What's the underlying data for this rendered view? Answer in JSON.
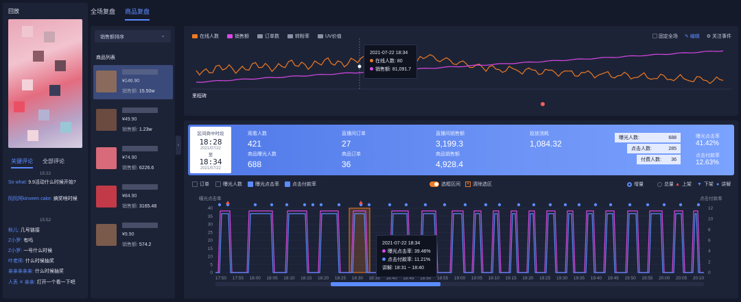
{
  "left": {
    "title": "回放",
    "comment_tabs": [
      "关键评论",
      "全部评论"
    ],
    "comments": [
      {
        "time": "15:22"
      },
      {
        "user": "So what:",
        "text": "9.9活动什么时候开始?"
      },
      {
        "user": "阮阮阿kinveen cake:",
        "text": "搞奖啥时候"
      },
      {
        "time": "15:52"
      },
      {
        "user": "秋儿:",
        "text": "几号链接"
      },
      {
        "user": "Z小罗:",
        "text": "有吗"
      },
      {
        "user": "Z小罗:",
        "text": "一号什么时候"
      },
      {
        "user": "叶老师:",
        "text": "什么时候抽奖"
      },
      {
        "user": "亲亲亲亲亲:",
        "text": "什么时候抽奖"
      },
      {
        "user": "人丢 ✕ 亲亲:",
        "text": "打开一个看一下吧"
      }
    ]
  },
  "tabs": [
    "全场复盘",
    "商品复盘"
  ],
  "middle": {
    "sort_label": "销售额排序",
    "list_title": "商品列表",
    "sales_prefix": "销售额:",
    "items": [
      {
        "price": "¥146.90",
        "sales": "15.50w",
        "thumb": "#8a6a5c"
      },
      {
        "price": "¥49.90",
        "sales": "1.23w",
        "thumb": "#6b4a40"
      },
      {
        "price": "¥74.90",
        "sales": "6226.6",
        "thumb": "#d86a7a"
      },
      {
        "price": "¥84.90",
        "sales": "3165.48",
        "thumb": "#c23a48"
      },
      {
        "price": "¥9.90",
        "sales": "574.2",
        "thumb": "#7a5a4a"
      }
    ]
  },
  "chart1": {
    "legend": [
      {
        "name": "在线人数",
        "color": "#f07a23"
      },
      {
        "name": "销售额",
        "color": "#d948e8"
      },
      {
        "name": "订单数",
        "color": "#8a90a6"
      },
      {
        "name": "转粉率",
        "color": "#8a90a6"
      },
      {
        "name": "UV价值",
        "color": "#8a90a6"
      }
    ],
    "actions": [
      "固定全场",
      "编辑",
      "关注事件"
    ],
    "milestone": "里程碑",
    "tooltip": {
      "time": "2021-07-22 18:34",
      "l1": "在线人数: 80",
      "l2": "销售额: 81,091.7"
    }
  },
  "kpi": {
    "range_title": "区间商中时段",
    "start_time": "18:28",
    "start_date": "2021/07/22",
    "to": "至",
    "end_time": "18:34",
    "end_date": "2021/07/22",
    "cells": [
      {
        "label": "观看人数",
        "value": "421"
      },
      {
        "label": "直播间订单",
        "value": "27"
      },
      {
        "label": "直播间销售额",
        "value": "3,199.3"
      },
      {
        "label": "投放消耗",
        "value": "1,084.32"
      },
      {
        "label": "商品曝光人数",
        "value": "688"
      },
      {
        "label": "商品订单",
        "value": "36"
      },
      {
        "label": "商品销售额",
        "value": "4,928.4"
      }
    ],
    "funnel": [
      {
        "label": "曝光人数:",
        "value": "688"
      },
      {
        "label": "点击人数:",
        "value": "285"
      },
      {
        "label": "付费人数:",
        "value": "36"
      }
    ],
    "rates": [
      {
        "label": "曝光点击率",
        "value": "41.42%"
      },
      {
        "label": "点击付款率",
        "value": "12.63%"
      }
    ]
  },
  "controls": {
    "checks": [
      {
        "label": "订单",
        "on": false
      },
      {
        "label": "曝光人数",
        "on": false
      },
      {
        "label": "曝光点击率",
        "on": true
      },
      {
        "label": "点击付款率",
        "on": true
      }
    ],
    "toggle": "选框区间",
    "clear": "清除选区",
    "modes": [
      "增量",
      "总量"
    ],
    "up": "上架",
    "down": "下架",
    "explain": "讲解"
  },
  "chart_data": {
    "type": "line",
    "ylabel": "曝光点击率",
    "y2label": "点击付款率",
    "ylim": [
      0,
      40
    ],
    "y2lim": [
      0,
      12
    ],
    "y_ticks": [
      "40",
      "35",
      "30",
      "25",
      "20",
      "15",
      "10",
      "5",
      "0"
    ],
    "y2_ticks": [
      "12",
      "10",
      "8",
      "6",
      "4",
      "2",
      "0"
    ],
    "x_ticks": [
      "17:50",
      "17:55",
      "18:00",
      "18:05",
      "18:10",
      "18:15",
      "18:20",
      "18:25",
      "18:30",
      "18:35",
      "18:40",
      "18:45",
      "18:50",
      "18:55",
      "19:00",
      "19:05",
      "19:10",
      "19:15",
      "19:20",
      "19:25",
      "19:30",
      "19:35",
      "19:40",
      "19:45",
      "19:50",
      "19:55",
      "20:00",
      "20:05",
      "20:10"
    ],
    "series": [
      {
        "name": "曝光点击率",
        "color": "#d948e8"
      },
      {
        "name": "点击付款率",
        "color": "#5b8cff"
      }
    ],
    "tooltip": {
      "time": "2021-07-22 18:34",
      "l1": "曝光点击率: 39.46%",
      "l2": "点击付款率: 11.21%",
      "l3": "讲解: 18:31 ~ 18:40"
    }
  }
}
